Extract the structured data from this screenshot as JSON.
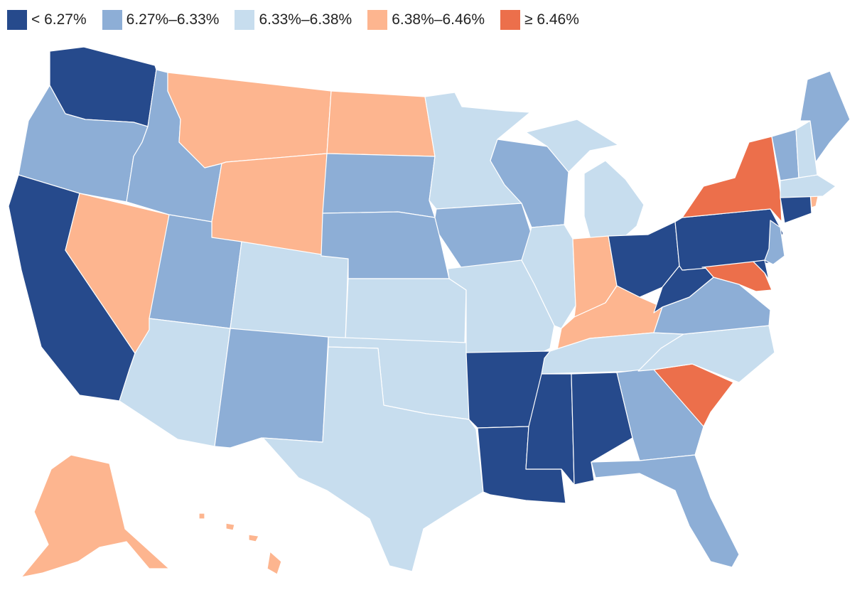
{
  "legend": {
    "bins": [
      {
        "label": "< 6.27%",
        "color": "#264a8c"
      },
      {
        "label": "6.27%–6.33%",
        "color": "#8daed6"
      },
      {
        "label": "6.33%–6.38%",
        "color": "#c7ddee"
      },
      {
        "label": "6.38%–6.46%",
        "color": "#fdb58f"
      },
      {
        "label": "≥ 6.46%",
        "color": "#ec6f4b"
      }
    ]
  },
  "states": {
    "WA": 0,
    "OR": 1,
    "CA": 0,
    "NV": 3,
    "ID": 1,
    "MT": 3,
    "WY": 3,
    "UT": 1,
    "AZ": 2,
    "NM": 1,
    "CO": 2,
    "ND": 3,
    "SD": 1,
    "NE": 1,
    "KS": 2,
    "OK": 2,
    "TX": 2,
    "MN": 2,
    "IA": 1,
    "MO": 2,
    "AR": 0,
    "LA": 0,
    "WI": 1,
    "IL": 2,
    "MI": 2,
    "IN": 3,
    "OH": 0,
    "KY": 3,
    "TN": 2,
    "MS": 0,
    "AL": 0,
    "GA": 1,
    "FL": 1,
    "SC": 4,
    "NC": 2,
    "VA": 1,
    "WV": 0,
    "PA": 0,
    "NY": 4,
    "VT": 1,
    "NH": 2,
    "ME": 1,
    "MA": 2,
    "RI": 3,
    "CT": 0,
    "NJ": 1,
    "DE": 0,
    "MD": 4,
    "AK": 3,
    "HI": 3
  }
}
